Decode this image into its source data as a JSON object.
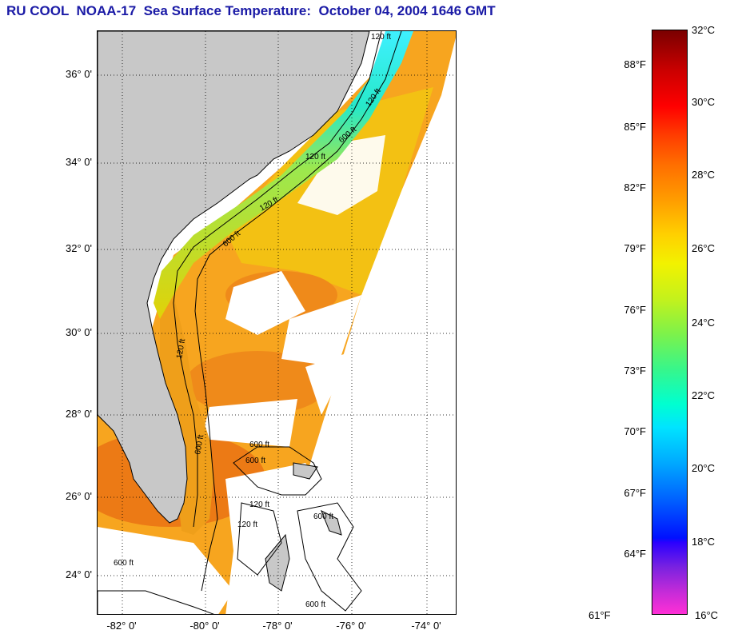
{
  "title": "RU COOL  NOAA-17  Sea Surface Temperature:  October 04, 2004 1646 GMT",
  "map": {
    "lat_labels": [
      "36° 0'",
      "34° 0'",
      "32° 0'",
      "30° 0'",
      "28° 0'",
      "26° 0'",
      "24° 0'"
    ],
    "lon_labels": [
      "-82° 0'",
      "-80° 0'",
      "-78° 0'",
      "-76° 0'",
      "-74° 0'"
    ],
    "contour_labels": [
      "120 ft",
      "120 ft",
      "600 ft",
      "120 ft",
      "600 ft",
      "120 ft",
      "600 ft",
      "120 ft",
      "600 ft",
      "600 ft",
      "120 ft",
      "120 ft",
      "600 ft",
      "600 ft",
      "600 ft"
    ],
    "colors": {
      "land": "#c8c8c8",
      "cloud": "#ffffff",
      "warm": "#f5a623",
      "cool": "#7fe07f",
      "cold": "#2ee6e6"
    }
  },
  "colorbar": {
    "fahrenheit": [
      "88°F",
      "85°F",
      "82°F",
      "79°F",
      "76°F",
      "73°F",
      "70°F",
      "67°F",
      "64°F",
      "61°F"
    ],
    "celsius": [
      "32°C",
      "30°C",
      "28°C",
      "26°C",
      "24°C",
      "22°C",
      "20°C",
      "18°C",
      "16°C"
    ]
  }
}
